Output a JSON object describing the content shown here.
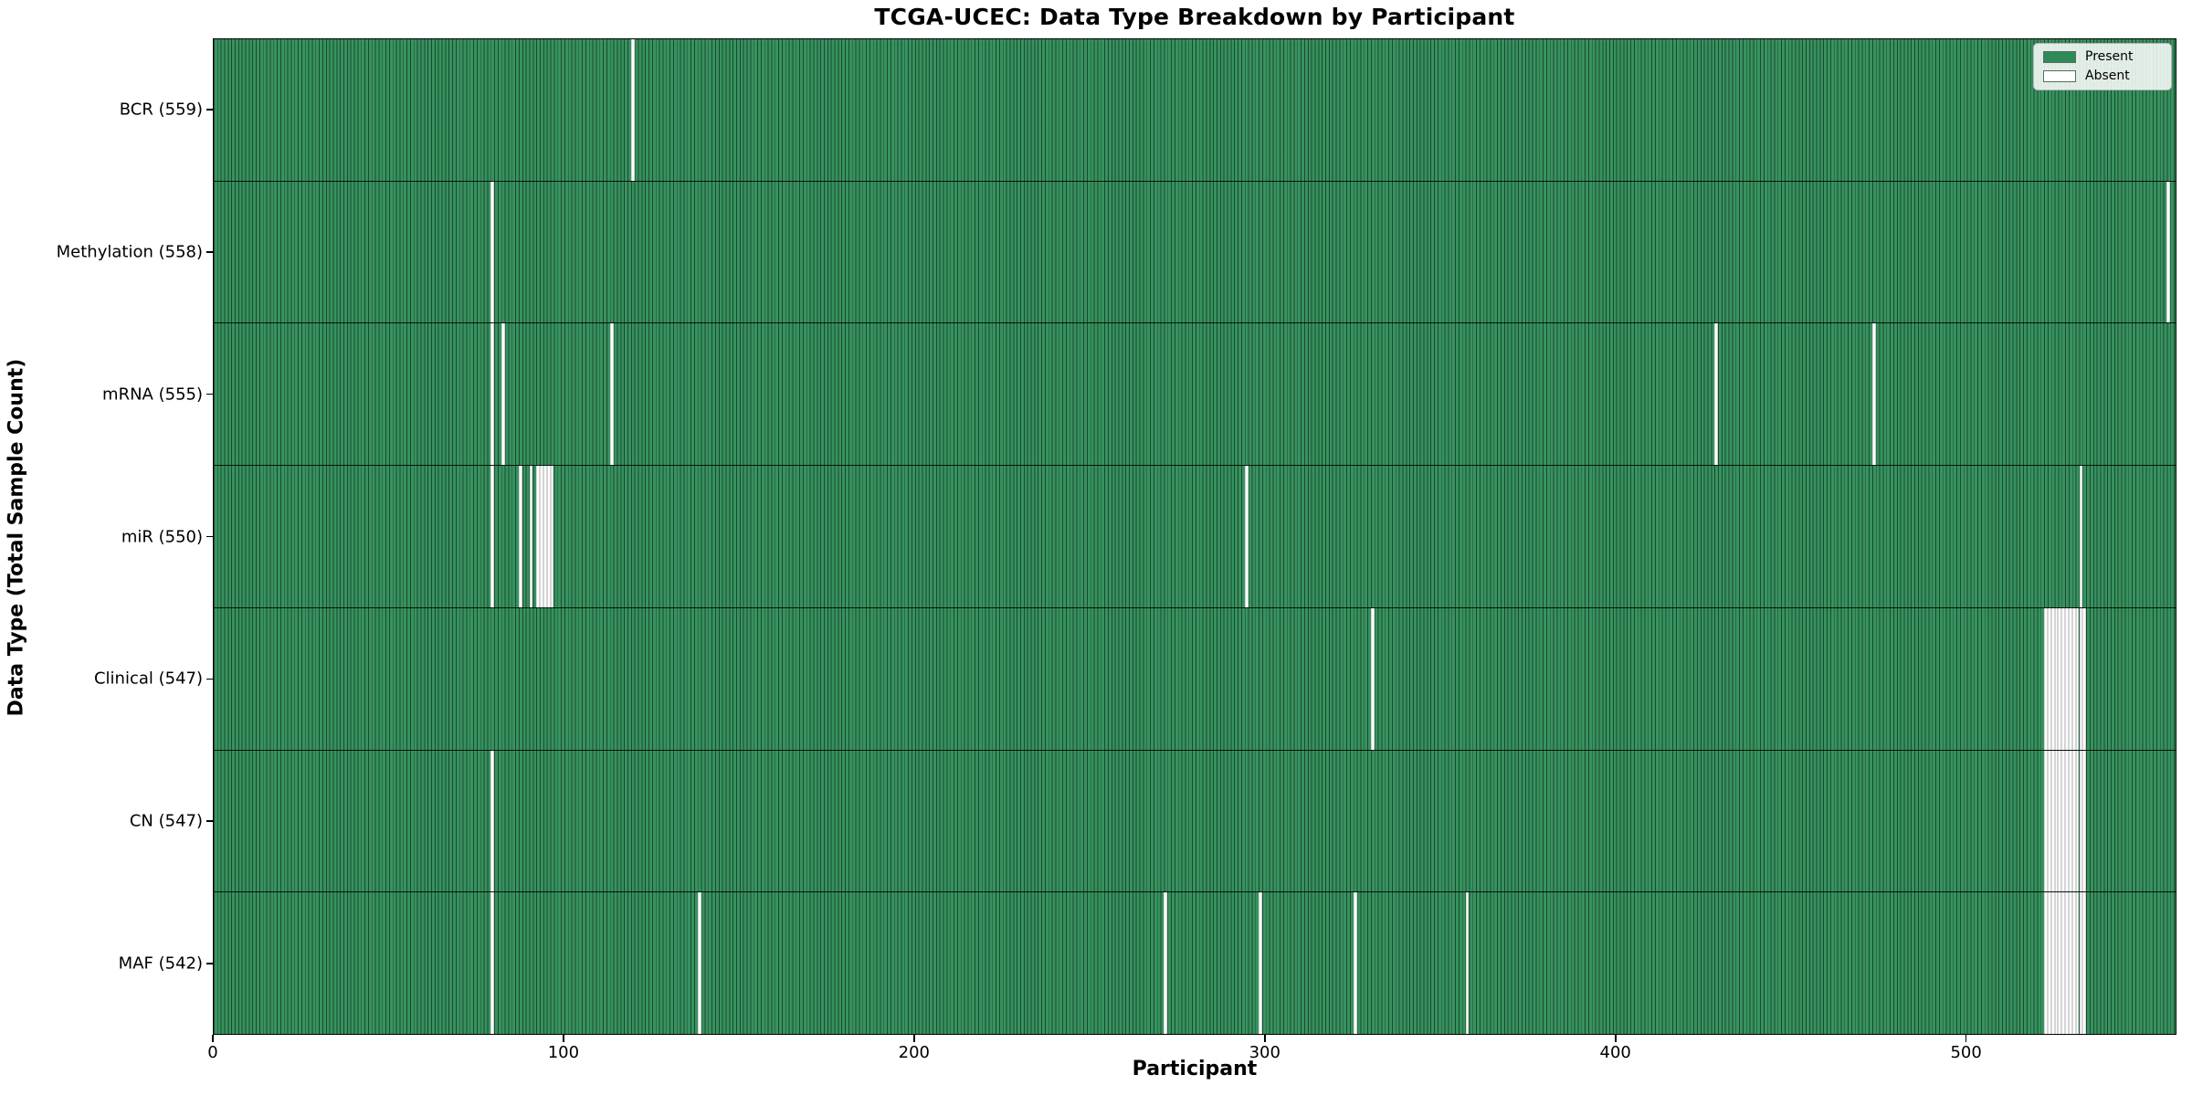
{
  "chart_data": {
    "type": "heatmap",
    "title": "TCGA-UCEC: Data Type Breakdown by Participant",
    "xlabel": "Participant",
    "ylabel": "Data Type (Total Sample Count)",
    "n_participants": 560,
    "x_axis": {
      "ticks": [
        0,
        100,
        200,
        300,
        400,
        500
      ],
      "range": [
        0,
        560
      ]
    },
    "grid": false,
    "legend_position": "upper right",
    "present_color": "#2e8b57",
    "absent_color": "#ffffff",
    "legend": [
      {
        "label": "Present",
        "color": "#2e8b57"
      },
      {
        "label": "Absent",
        "color": "#ffffff"
      }
    ],
    "rows": [
      {
        "label": "BCR (559)",
        "data_type": "BCR",
        "present_count": 559,
        "absent_participants": [
          119
        ]
      },
      {
        "label": "Methylation (558)",
        "data_type": "Methylation",
        "present_count": 558,
        "absent_participants": [
          79,
          557
        ]
      },
      {
        "label": "mRNA (555)",
        "data_type": "mRNA",
        "present_count": 555,
        "absent_participants": [
          79,
          82,
          113,
          428,
          473
        ]
      },
      {
        "label": "miR (550)",
        "data_type": "miR",
        "present_count": 550,
        "absent_participants": [
          79,
          87,
          90,
          92,
          93,
          94,
          95,
          96,
          294,
          532
        ]
      },
      {
        "label": "Clinical (547)",
        "data_type": "Clinical",
        "present_count": 547,
        "absent_participants": [
          330,
          522,
          523,
          524,
          525,
          526,
          527,
          528,
          529,
          530,
          531,
          532,
          533
        ]
      },
      {
        "label": "CN (547)",
        "data_type": "CN",
        "present_count": 547,
        "absent_participants": [
          79,
          522,
          523,
          524,
          525,
          526,
          527,
          528,
          529,
          530,
          531,
          532,
          533
        ]
      },
      {
        "label": "MAF (542)",
        "data_type": "MAF",
        "present_count": 542,
        "absent_participants": [
          79,
          138,
          271,
          298,
          325,
          357,
          522,
          523,
          524,
          525,
          526,
          527,
          528,
          529,
          530,
          531,
          532,
          533
        ]
      }
    ]
  }
}
